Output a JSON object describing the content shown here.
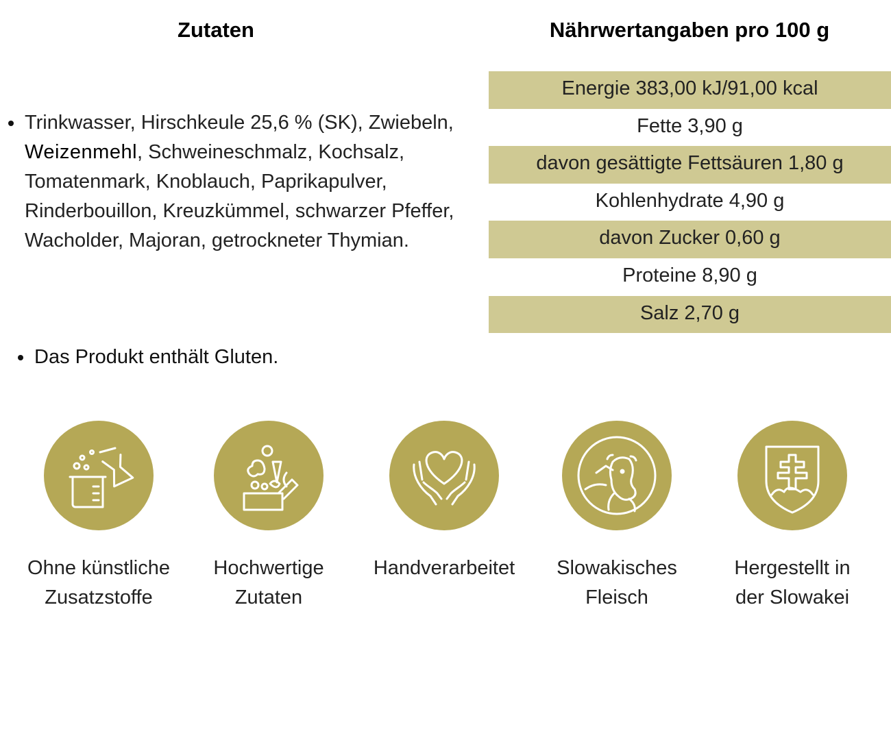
{
  "ingredients": {
    "heading": "Zutaten",
    "text_before": "Trinkwasser, Hirschkeule 25,6 % (SK), Zwiebeln, ",
    "allergen": "Weizenmehl",
    "text_after": ", Schweineschmalz, Kochsalz, Tomatenmark, Knoblauch, Paprikapulver, Rinderbouillon, Kreuzkümmel, schwarzer Pfeffer, Wacholder, Majoran, getrockneter Thymian.",
    "note": "Das Produkt enthält Gluten."
  },
  "nutrition": {
    "heading": "Nährwertangaben pro 100 g",
    "rows": [
      "Energie 383,00 kJ/91,00 kcal",
      "Fette 3,90 g",
      "davon gesättigte Fettsäuren 1,80 g",
      "Kohlenhydrate 4,90 g",
      "davon Zucker 0,60 g",
      "Proteine 8,90 g",
      "Salz 2,70 g"
    ]
  },
  "badges": [
    {
      "label": "Ohne künstliche\nZusatzstoffe",
      "icon": "lab-flask-icon"
    },
    {
      "label": "Hochwertige\nZutaten",
      "icon": "vegetables-icon"
    },
    {
      "label": "Handverarbeitet",
      "icon": "hands-heart-icon"
    },
    {
      "label": "Slowakisches\nFleisch",
      "icon": "cow-icon"
    },
    {
      "label": "Hergestellt in\nder Slowakei",
      "icon": "slovak-coat-of-arms-icon"
    }
  ],
  "colors": {
    "badge_circle": "#b5a856",
    "table_shade": "#cfc993"
  }
}
